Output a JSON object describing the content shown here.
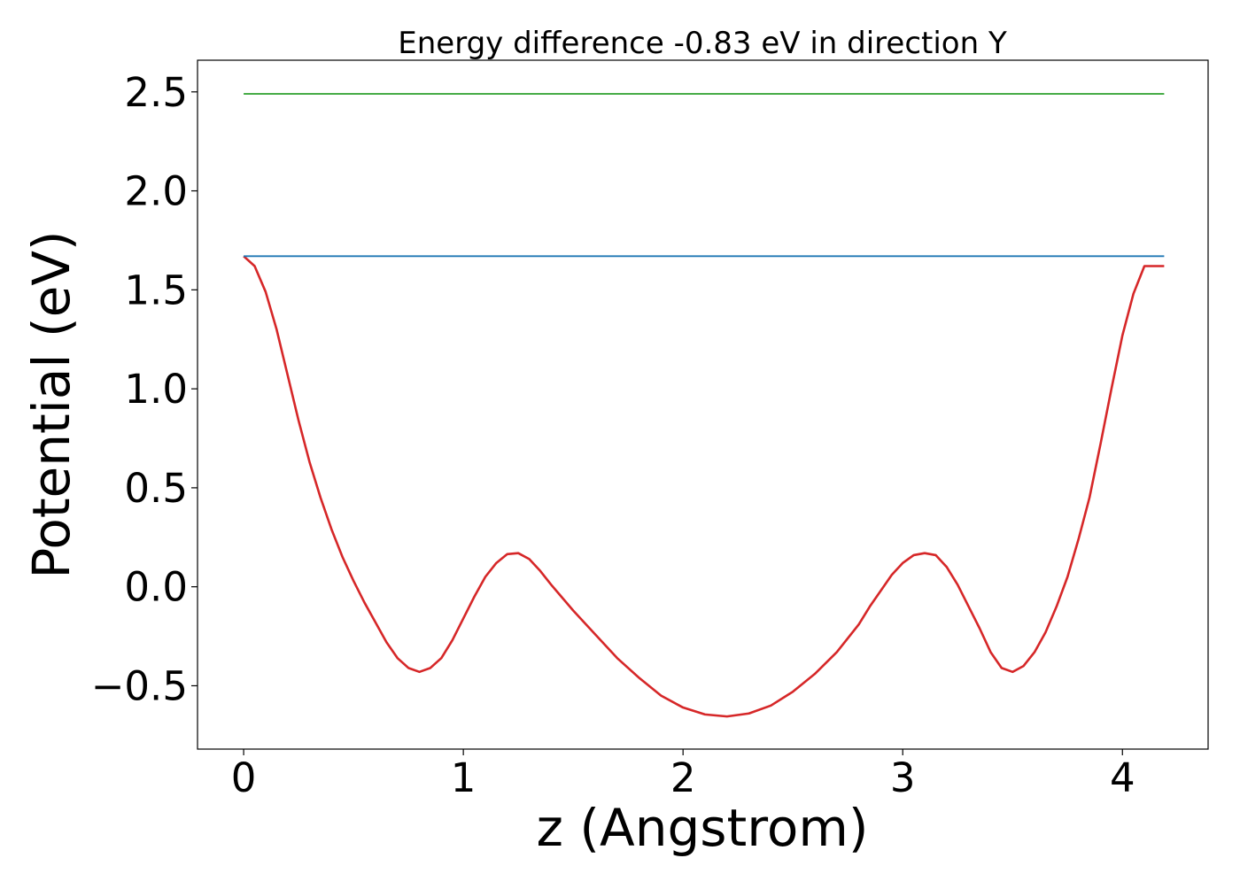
{
  "chart_data": {
    "type": "line",
    "title": "Energy difference -0.83 eV in direction Y",
    "xlabel": "z (Angstrom)",
    "ylabel": "Potential (eV)",
    "xlim": [
      -0.21,
      4.39
    ],
    "ylim": [
      -0.82,
      2.66
    ],
    "xticks": [
      0,
      1,
      2,
      3,
      4
    ],
    "xtick_labels": [
      "0",
      "1",
      "2",
      "3",
      "4"
    ],
    "yticks": [
      -0.5,
      0.0,
      0.5,
      1.0,
      1.5,
      2.0,
      2.5
    ],
    "ytick_labels": [
      "−0.5",
      "0.0",
      "0.5",
      "1.0",
      "1.5",
      "2.0",
      "2.5"
    ],
    "grid": false,
    "legend": "none",
    "series": [
      {
        "color": "#d62728",
        "x": [
          0.0,
          0.05,
          0.1,
          0.15,
          0.2,
          0.25,
          0.3,
          0.35,
          0.4,
          0.45,
          0.5,
          0.55,
          0.6,
          0.65,
          0.7,
          0.75,
          0.8,
          0.85,
          0.9,
          0.95,
          1.0,
          1.05,
          1.1,
          1.15,
          1.2,
          1.25,
          1.3,
          1.35,
          1.4,
          1.5,
          1.6,
          1.7,
          1.8,
          1.9,
          2.0,
          2.1,
          2.2,
          2.3,
          2.4,
          2.5,
          2.6,
          2.7,
          2.8,
          2.85,
          2.9,
          2.95,
          3.0,
          3.05,
          3.1,
          3.15,
          3.2,
          3.25,
          3.3,
          3.35,
          3.4,
          3.45,
          3.5,
          3.55,
          3.6,
          3.65,
          3.7,
          3.75,
          3.8,
          3.85,
          3.9,
          3.95,
          4.0,
          4.05,
          4.1,
          4.15,
          4.19
        ],
        "y": [
          1.67,
          1.62,
          1.49,
          1.3,
          1.07,
          0.84,
          0.63,
          0.45,
          0.29,
          0.15,
          0.03,
          -0.08,
          -0.18,
          -0.28,
          -0.36,
          -0.41,
          -0.43,
          -0.41,
          -0.36,
          -0.27,
          -0.16,
          -0.05,
          0.05,
          0.12,
          0.165,
          0.17,
          0.14,
          0.08,
          0.01,
          -0.12,
          -0.24,
          -0.36,
          -0.46,
          -0.55,
          -0.61,
          -0.645,
          -0.655,
          -0.64,
          -0.6,
          -0.53,
          -0.44,
          -0.33,
          -0.19,
          -0.1,
          -0.02,
          0.06,
          0.12,
          0.16,
          0.17,
          0.16,
          0.1,
          0.01,
          -0.1,
          -0.21,
          -0.33,
          -0.41,
          -0.43,
          -0.4,
          -0.33,
          -0.23,
          -0.1,
          0.05,
          0.24,
          0.45,
          0.72,
          1.0,
          1.27,
          1.48,
          1.62,
          1.62,
          1.62
        ]
      },
      {
        "color": "#1f77b4",
        "x": [
          0.0,
          4.19
        ],
        "y": [
          1.67,
          1.67
        ]
      },
      {
        "color": "#2ca02c",
        "x": [
          0.0,
          4.19
        ],
        "y": [
          2.49,
          2.49
        ]
      }
    ]
  }
}
